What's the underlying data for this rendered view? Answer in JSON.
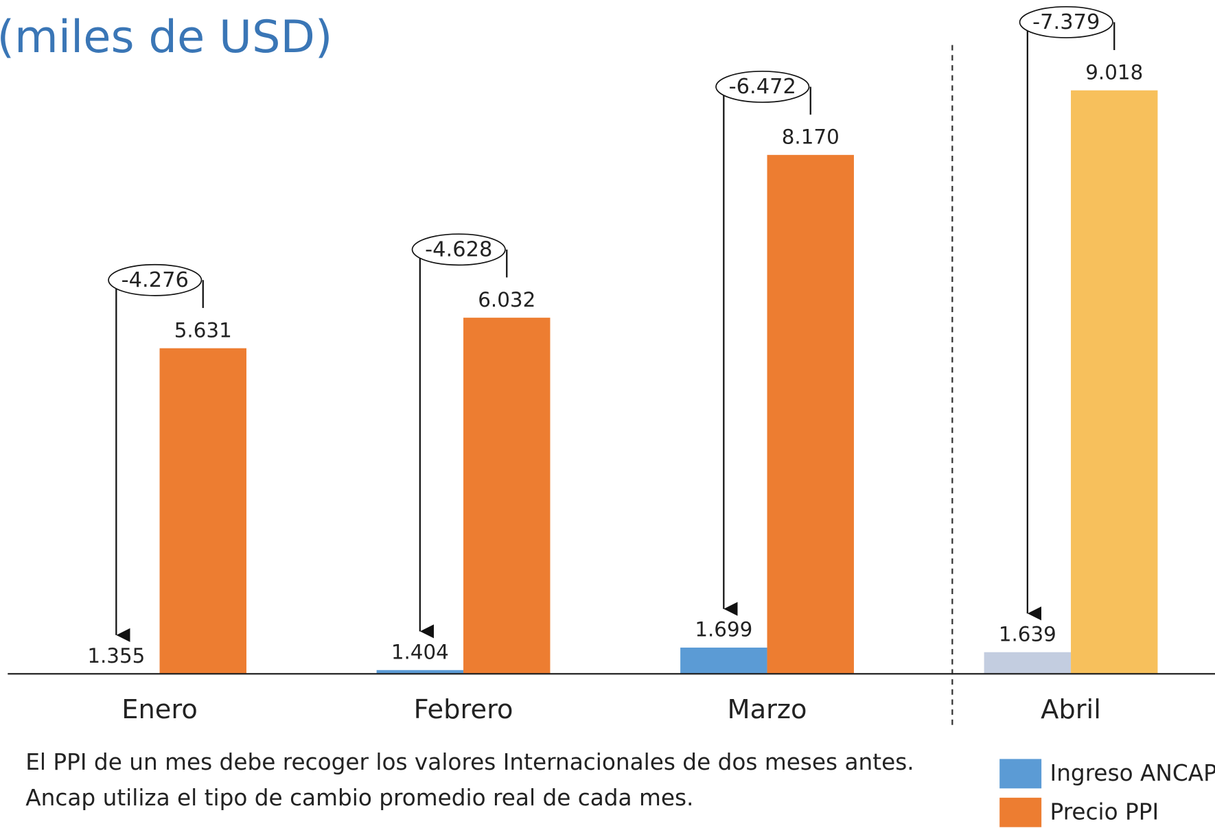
{
  "chart_data": {
    "type": "bar",
    "title": "(miles de USD)",
    "categories": [
      "Enero",
      "Febrero",
      "Marzo",
      "Abril"
    ],
    "series": [
      {
        "name": "Ingreso ANCAP",
        "color": "#5b9bd5",
        "colors": [
          "#5b9bd5",
          "#5b9bd5",
          "#5b9bd5",
          "#c3cde0"
        ],
        "values": [
          1355,
          1404,
          1699,
          1639
        ],
        "value_labels": [
          "1.355",
          "1.404",
          "1.699",
          "1.639"
        ]
      },
      {
        "name": "Precio PPI",
        "color": "#ed7d31",
        "colors": [
          "#ed7d31",
          "#ed7d31",
          "#ed7d31",
          "#f7c05c"
        ],
        "values": [
          5631,
          6032,
          8170,
          9018
        ],
        "value_labels": [
          "5.631",
          "6.032",
          "8.170",
          "9.018"
        ]
      }
    ],
    "differences": {
      "values": [
        -4276,
        -4628,
        -6472,
        -7379
      ],
      "value_labels": [
        "-4.276",
        "-4.628",
        "-6.472",
        "-7.379"
      ]
    },
    "ylim": [
      1355,
      10000
    ],
    "notes": [
      "El PPI de un mes debe recoger los valores Internacionales de dos meses antes.",
      "Ancap utiliza el tipo de cambio promedio real de cada mes."
    ]
  }
}
